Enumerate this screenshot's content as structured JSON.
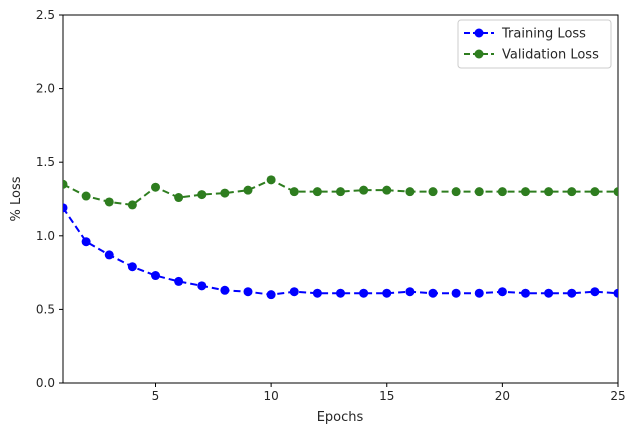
{
  "chart_data": {
    "type": "line",
    "title": "",
    "xlabel": "Epochs",
    "ylabel": "% Loss",
    "xlim": [
      1,
      25
    ],
    "ylim": [
      0,
      2.5
    ],
    "x_ticks": [
      5,
      10,
      15,
      20,
      25
    ],
    "y_ticks": [
      0.0,
      0.5,
      1.0,
      1.5,
      2.0,
      2.5
    ],
    "x_tick_labels": [
      "5",
      "10",
      "15",
      "20",
      "25"
    ],
    "y_tick_labels": [
      "0.0",
      "0.5",
      "1.0",
      "1.5",
      "2.0",
      "2.5"
    ],
    "grid": false,
    "legend_position": "top-right",
    "x": [
      1,
      2,
      3,
      4,
      5,
      6,
      7,
      8,
      9,
      10,
      11,
      12,
      13,
      14,
      15,
      16,
      17,
      18,
      19,
      20,
      21,
      22,
      23,
      24,
      25
    ],
    "series": [
      {
        "name": "Training Loss",
        "color": "#0000ff",
        "style": "dashed-marker",
        "values": [
          1.19,
          0.96,
          0.87,
          0.79,
          0.73,
          0.69,
          0.66,
          0.63,
          0.62,
          0.6,
          0.62,
          0.61,
          0.61,
          0.61,
          0.61,
          0.62,
          0.61,
          0.61,
          0.61,
          0.62,
          0.61,
          0.61,
          0.61,
          0.62,
          0.61
        ]
      },
      {
        "name": "Validation Loss",
        "color": "#2e7d1f",
        "style": "dashed-marker",
        "values": [
          1.35,
          1.27,
          1.23,
          1.21,
          1.33,
          1.26,
          1.28,
          1.29,
          1.31,
          1.38,
          1.3,
          1.3,
          1.3,
          1.31,
          1.31,
          1.3,
          1.3,
          1.3,
          1.3,
          1.3,
          1.3,
          1.3,
          1.3,
          1.3,
          1.3
        ]
      }
    ]
  }
}
